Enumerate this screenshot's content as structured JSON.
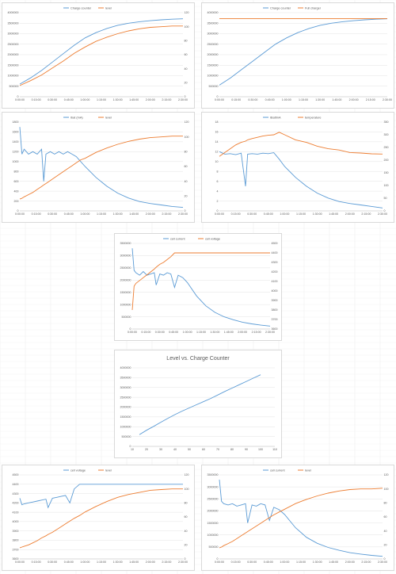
{
  "colors": {
    "blue": "#5b9bd5",
    "orange": "#ed7d31",
    "grid": "#e3e3e3",
    "text": "#595959"
  },
  "time_ticks": [
    "0:00:00",
    "0:15:00",
    "0:30:00",
    "0:45:00",
    "1:00:00",
    "1:15:00",
    "1:30:00",
    "1:45:00",
    "2:00:00",
    "2:15:00",
    "2:30:00"
  ],
  "chart_data": [
    {
      "type": "line",
      "title": "",
      "x_minutes": [
        0,
        10,
        20,
        30,
        40,
        50,
        60,
        70,
        80,
        90,
        100,
        110,
        120,
        130,
        140,
        150
      ],
      "left_axis": {
        "ticks": [
          "0",
          "500000",
          "1000000",
          "1500000",
          "2000000",
          "2500000",
          "3000000",
          "3500000",
          "4000000"
        ],
        "ylim": [
          0,
          4000000
        ]
      },
      "right_axis": {
        "ticks": [
          "0",
          "20",
          "40",
          "60",
          "80",
          "100",
          "120"
        ],
        "ylim": [
          0,
          120
        ]
      },
      "series": [
        {
          "name": "Charge counter",
          "axis": "left",
          "color": "#5b9bd5",
          "values": [
            600000,
            900000,
            1250000,
            1650000,
            2050000,
            2450000,
            2800000,
            3050000,
            3250000,
            3400000,
            3500000,
            3570000,
            3620000,
            3660000,
            3690000,
            3710000
          ]
        },
        {
          "name": "level",
          "axis": "right",
          "color": "#ed7d31",
          "values": [
            16,
            23,
            31,
            41,
            51,
            62,
            71,
            79,
            85,
            90,
            94,
            97,
            99,
            100,
            101,
            101
          ]
        }
      ]
    },
    {
      "type": "line",
      "title": "",
      "x_minutes": [
        0,
        10,
        20,
        30,
        40,
        50,
        60,
        70,
        80,
        90,
        100,
        110,
        120,
        130,
        140,
        150
      ],
      "left_axis": {
        "ticks": [
          "0",
          "500000",
          "1000000",
          "1500000",
          "2000000",
          "2500000",
          "3000000",
          "3500000",
          "4000000"
        ],
        "ylim": [
          0,
          4000000
        ]
      },
      "right_axis": {
        "ticks": [],
        "ylim": [
          0,
          4000000
        ]
      },
      "series": [
        {
          "name": "Charge counter",
          "axis": "left",
          "color": "#5b9bd5",
          "values": [
            550000,
            900000,
            1300000,
            1700000,
            2100000,
            2500000,
            2800000,
            3050000,
            3250000,
            3400000,
            3500000,
            3570000,
            3620000,
            3660000,
            3690000,
            3710000
          ]
        },
        {
          "name": "Full charger",
          "axis": "left",
          "color": "#ed7d31",
          "values": [
            3720000,
            3720000,
            3720000,
            3720000,
            3720000,
            3720000,
            3720000,
            3720000,
            3720000,
            3720000,
            3720000,
            3720000,
            3720000,
            3720000,
            3720000,
            3720000
          ]
        }
      ]
    },
    {
      "type": "line",
      "title": "",
      "x_minutes": [
        0,
        2,
        4,
        8,
        12,
        16,
        20,
        22,
        24,
        28,
        32,
        36,
        40,
        44,
        48,
        52,
        56,
        60,
        70,
        80,
        90,
        100,
        110,
        120,
        130,
        140,
        150
      ],
      "left_axis": {
        "ticks": [
          "0",
          "200",
          "400",
          "600",
          "800",
          "1000",
          "1200",
          "1400",
          "1600",
          "1800"
        ],
        "ylim": [
          0,
          1800
        ]
      },
      "right_axis": {
        "ticks": [
          "0",
          "20",
          "40",
          "60",
          "80",
          "100",
          "120"
        ],
        "ylim": [
          0,
          120
        ]
      },
      "series": [
        {
          "name": "Ibat (mA)",
          "axis": "left",
          "color": "#5b9bd5",
          "values": [
            1700,
            1150,
            1250,
            1150,
            1200,
            1150,
            1250,
            600,
            1150,
            1200,
            1150,
            1200,
            1150,
            1200,
            1150,
            1100,
            1000,
            900,
            680,
            500,
            360,
            260,
            190,
            150,
            120,
            90,
            70
          ]
        },
        {
          "name": "level",
          "axis": "right",
          "color": "#ed7d31",
          "values": [
            16,
            17,
            19,
            22,
            25,
            29,
            33,
            35,
            37,
            41,
            45,
            49,
            53,
            57,
            61,
            65,
            69,
            71,
            79,
            85,
            90,
            94,
            97,
            99,
            100,
            101,
            101
          ]
        }
      ]
    },
    {
      "type": "line",
      "title": "",
      "x_minutes": [
        0,
        5,
        10,
        15,
        20,
        24,
        26,
        30,
        35,
        40,
        45,
        50,
        55,
        60,
        70,
        80,
        90,
        100,
        110,
        120,
        130,
        140,
        150
      ],
      "left_axis": {
        "ticks": [
          "0",
          "2",
          "4",
          "6",
          "8",
          "10",
          "12",
          "14",
          "16",
          "18"
        ],
        "ylim": [
          0,
          18
        ]
      },
      "right_axis": {
        "ticks": [
          "0",
          "50",
          "100",
          "150",
          "200",
          "250",
          "300",
          "350"
        ],
        "ylim": [
          0,
          350
        ]
      },
      "series": [
        {
          "name": "IBattmA",
          "axis": "left",
          "color": "#5b9bd5",
          "values": [
            12,
            11.5,
            11.6,
            11.4,
            11.7,
            5,
            11.5,
            11.6,
            11.5,
            11.7,
            11.6,
            11.8,
            10.5,
            9,
            6.8,
            5,
            3.6,
            2.6,
            1.9,
            1.5,
            1.2,
            0.9,
            0.6
          ]
        },
        {
          "name": "temperature",
          "axis": "right",
          "color": "#ed7d31",
          "values": [
            215,
            230,
            245,
            260,
            270,
            275,
            280,
            285,
            290,
            295,
            298,
            300,
            310,
            300,
            280,
            270,
            255,
            245,
            240,
            230,
            228,
            225,
            224
          ]
        }
      ]
    },
    {
      "type": "line",
      "title": "",
      "x_minutes": [
        0,
        2,
        4,
        8,
        12,
        16,
        20,
        24,
        26,
        30,
        34,
        38,
        42,
        46,
        50,
        55,
        60,
        70,
        80,
        90,
        100,
        110,
        120,
        130,
        140,
        150
      ],
      "left_axis": {
        "ticks": [
          "0",
          "500000",
          "1000000",
          "1500000",
          "2000000",
          "2500000",
          "3000000",
          "3500000"
        ],
        "ylim": [
          0,
          3500000
        ]
      },
      "right_axis": {
        "ticks": [
          "3600",
          "3700",
          "3800",
          "3900",
          "4000",
          "4100",
          "4200",
          "4300",
          "4400",
          "4500"
        ],
        "ylim": [
          3600,
          4500
        ]
      },
      "series": [
        {
          "name": "cell current",
          "axis": "left",
          "color": "#5b9bd5",
          "values": [
            3300000,
            2400000,
            2300000,
            2200000,
            2350000,
            2200000,
            2250000,
            2300000,
            1800000,
            2250000,
            2200000,
            2300000,
            2250000,
            1700000,
            2200000,
            2100000,
            1900000,
            1350000,
            950000,
            680000,
            500000,
            380000,
            280000,
            210000,
            160000,
            120000
          ]
        },
        {
          "name": "cell voltage",
          "axis": "right",
          "color": "#ed7d31",
          "values": [
            3800,
            4050,
            4080,
            4110,
            4140,
            4170,
            4200,
            4230,
            4250,
            4280,
            4300,
            4330,
            4360,
            4400,
            4400,
            4400,
            4400,
            4400,
            4400,
            4400,
            4400,
            4400,
            4400,
            4400,
            4400,
            4400
          ]
        }
      ]
    },
    {
      "type": "scatter",
      "title": "Level vs. Charge Counter",
      "x": [
        15,
        20,
        25,
        30,
        35,
        40,
        45,
        50,
        55,
        60,
        65,
        70,
        75,
        80,
        85,
        90,
        95,
        100
      ],
      "left_axis": {
        "ticks": [
          "0",
          "500000",
          "1000000",
          "1500000",
          "2000000",
          "2500000",
          "3000000",
          "3500000",
          "4000000"
        ],
        "ylim": [
          0,
          4000000
        ]
      },
      "x_axis": {
        "ticks": [
          "10",
          "20",
          "30",
          "40",
          "50",
          "60",
          "70",
          "80",
          "90",
          "100",
          "110"
        ],
        "xlim": [
          10,
          110
        ]
      },
      "series": [
        {
          "name": "",
          "axis": "left",
          "color": "#5b9bd5",
          "values": [
            600000,
            820000,
            1020000,
            1230000,
            1430000,
            1620000,
            1800000,
            1960000,
            2120000,
            2280000,
            2440000,
            2620000,
            2800000,
            2970000,
            3140000,
            3310000,
            3480000,
            3650000
          ]
        }
      ]
    },
    {
      "type": "line",
      "title": "",
      "x_minutes": [
        0,
        2,
        4,
        8,
        12,
        16,
        20,
        24,
        26,
        30,
        34,
        38,
        42,
        46,
        50,
        55,
        60,
        70,
        80,
        90,
        100,
        110,
        120,
        130,
        140,
        150
      ],
      "left_axis": {
        "ticks": [
          "3600",
          "3700",
          "3800",
          "3900",
          "4000",
          "4100",
          "4200",
          "4300",
          "4400",
          "4500"
        ],
        "ylim": [
          3600,
          4500
        ]
      },
      "right_axis": {
        "ticks": [
          "0",
          "20",
          "40",
          "60",
          "80",
          "100",
          "120"
        ],
        "ylim": [
          0,
          120
        ]
      },
      "series": [
        {
          "name": "cell voltage",
          "axis": "left",
          "color": "#5b9bd5",
          "values": [
            4250,
            4180,
            4190,
            4200,
            4210,
            4220,
            4230,
            4240,
            4150,
            4250,
            4260,
            4270,
            4280,
            4200,
            4350,
            4400,
            4400,
            4400,
            4400,
            4400,
            4400,
            4400,
            4400,
            4400,
            4400,
            4400
          ]
        },
        {
          "name": "level",
          "axis": "right",
          "color": "#ed7d31",
          "values": [
            16,
            17,
            18,
            20,
            23,
            26,
            30,
            33,
            35,
            38,
            42,
            46,
            50,
            54,
            58,
            62,
            67,
            75,
            82,
            88,
            92,
            95,
            98,
            99,
            100,
            100
          ]
        }
      ]
    },
    {
      "type": "line",
      "title": "",
      "x_minutes": [
        0,
        2,
        4,
        8,
        12,
        16,
        20,
        24,
        26,
        30,
        34,
        38,
        42,
        46,
        50,
        55,
        60,
        70,
        80,
        90,
        100,
        110,
        120,
        130,
        140,
        150
      ],
      "left_axis": {
        "ticks": [
          "0",
          "500000",
          "1000000",
          "1500000",
          "2000000",
          "2500000",
          "3000000",
          "3500000"
        ],
        "ylim": [
          0,
          3500000
        ]
      },
      "right_axis": {
        "ticks": [
          "0",
          "20",
          "40",
          "60",
          "80",
          "100",
          "120"
        ],
        "ylim": [
          0,
          120
        ]
      },
      "series": [
        {
          "name": "cell current",
          "axis": "left",
          "color": "#5b9bd5",
          "values": [
            3300000,
            2400000,
            2300000,
            2250000,
            2300000,
            2200000,
            2250000,
            2300000,
            1500000,
            2250000,
            2200000,
            2300000,
            2250000,
            1600000,
            2150000,
            2050000,
            1850000,
            1300000,
            900000,
            650000,
            480000,
            360000,
            260000,
            200000,
            150000,
            110000
          ]
        },
        {
          "name": "level",
          "axis": "right",
          "color": "#ed7d31",
          "values": [
            16,
            17,
            19,
            22,
            25,
            29,
            33,
            37,
            39,
            43,
            47,
            51,
            55,
            59,
            63,
            67,
            71,
            79,
            85,
            90,
            94,
            97,
            99,
            100,
            100,
            101
          ]
        }
      ]
    }
  ]
}
